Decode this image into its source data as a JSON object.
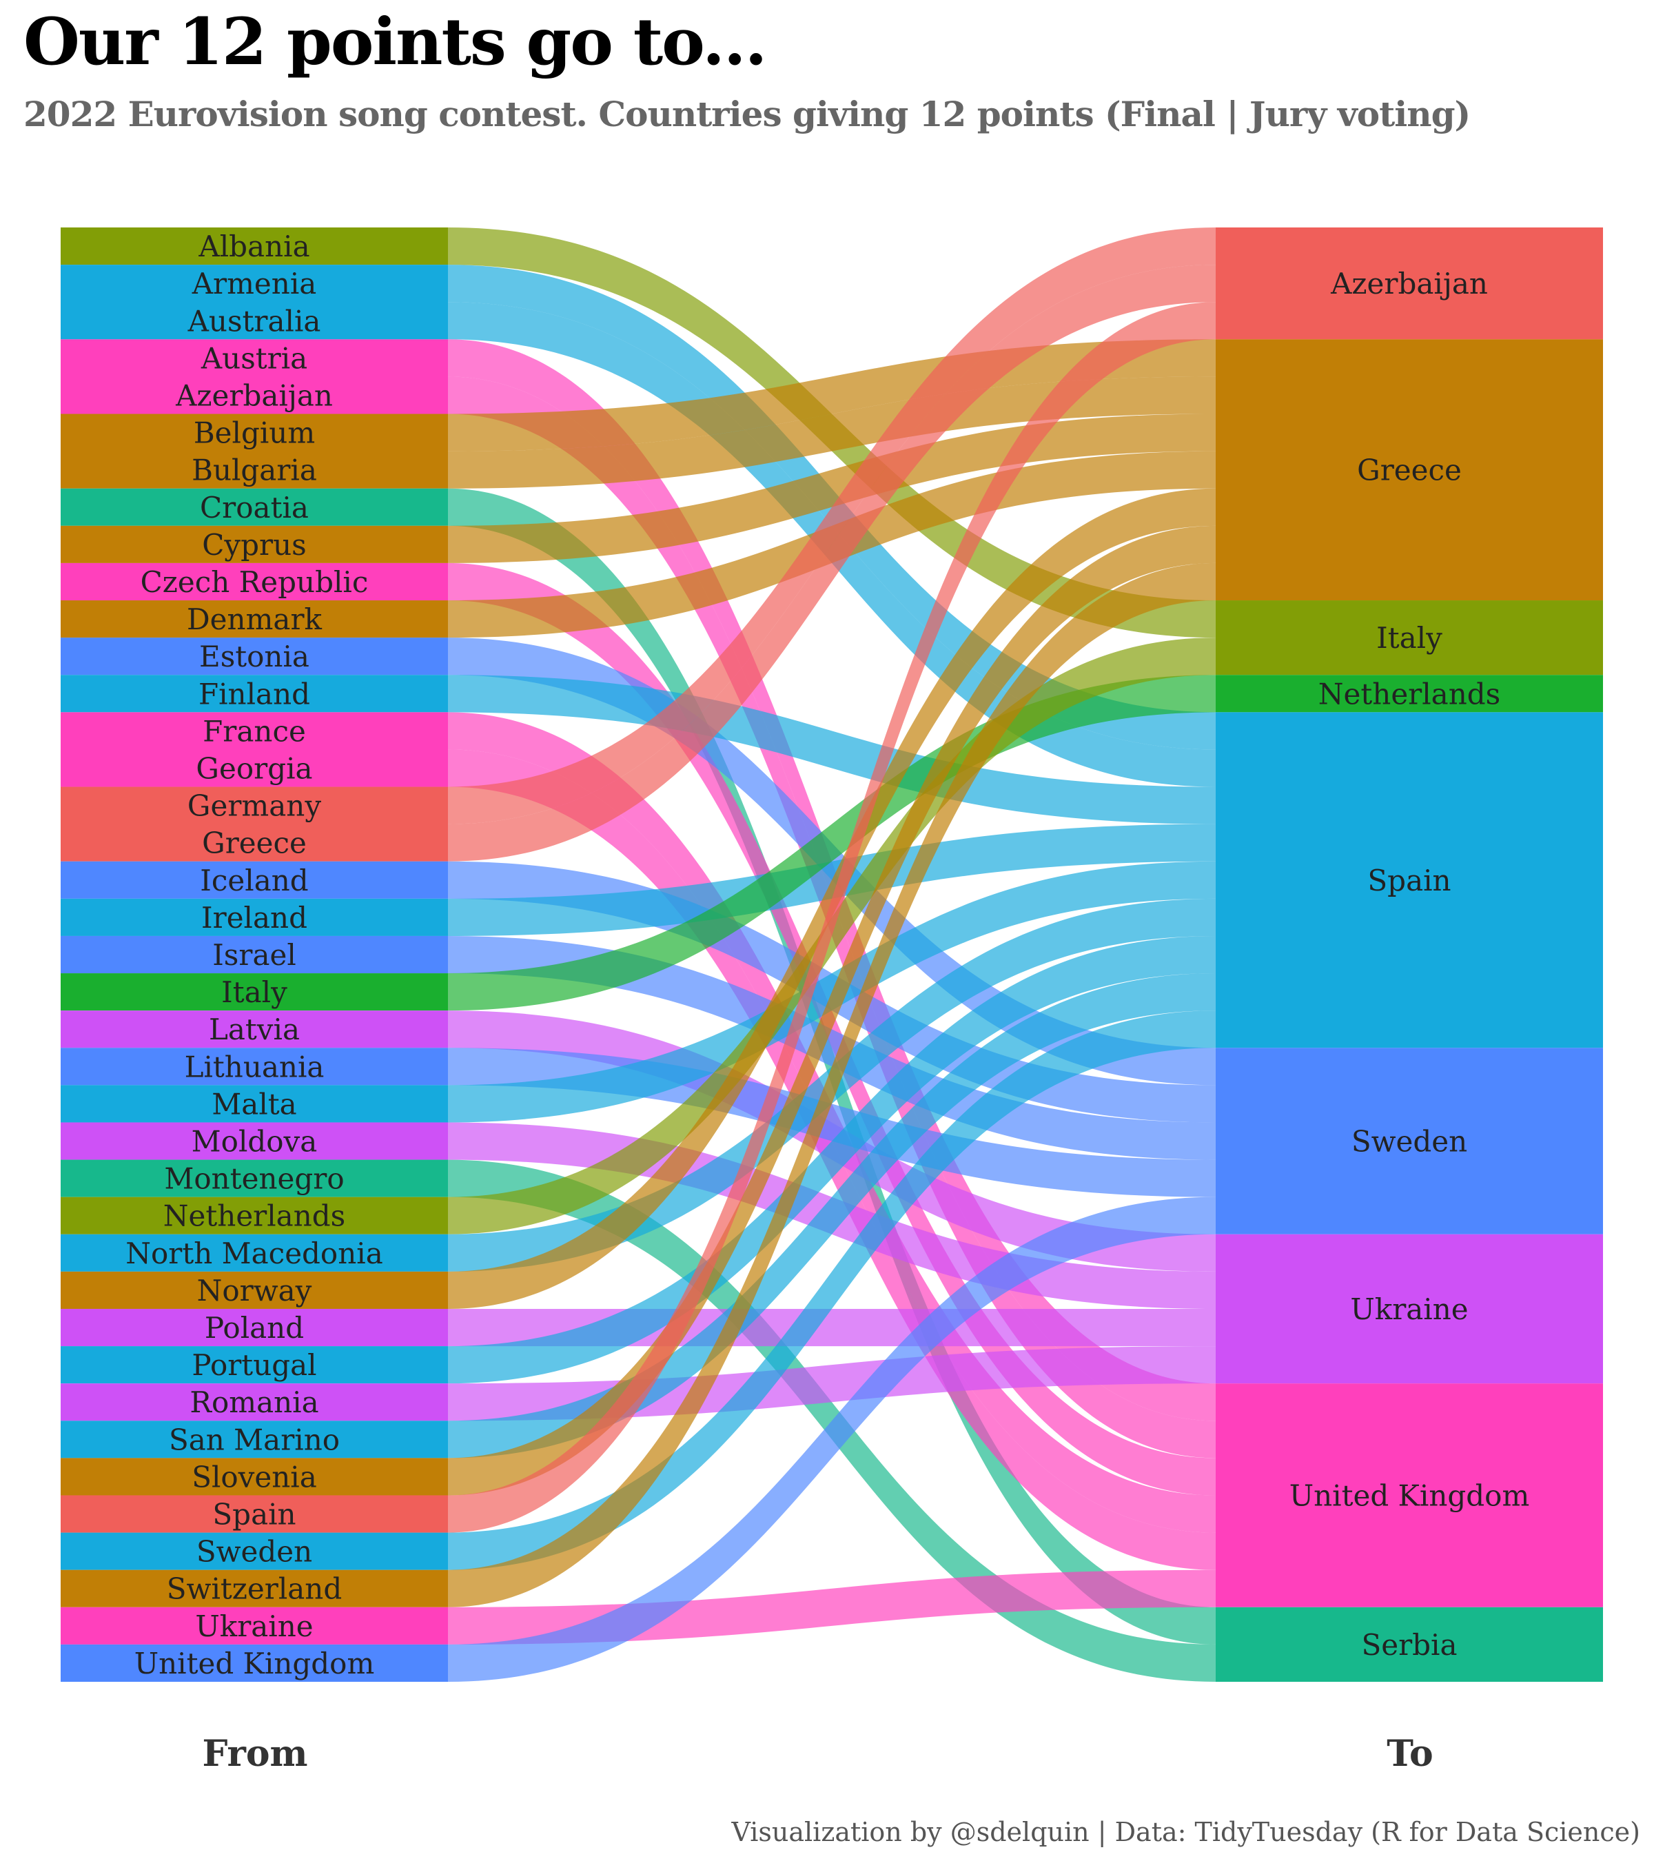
{
  "title": "Our 12 points go to...",
  "subtitle": "2022 Eurovision song contest. Countries giving 12 points (Final | Jury voting)",
  "caption": "Visualization by @sdelquin  |  Data: TidyTuesday (R for Data Science)",
  "chart_data": {
    "type": "alluvial",
    "axis_labels": [
      "From",
      "To"
    ],
    "flows": [
      {
        "from": "Albania",
        "to": "Italy",
        "value": 12
      },
      {
        "from": "Armenia",
        "to": "Spain",
        "value": 12
      },
      {
        "from": "Australia",
        "to": "Spain",
        "value": 12
      },
      {
        "from": "Austria",
        "to": "United Kingdom",
        "value": 12
      },
      {
        "from": "Azerbaijan",
        "to": "United Kingdom",
        "value": 12
      },
      {
        "from": "Belgium",
        "to": "Greece",
        "value": 12
      },
      {
        "from": "Bulgaria",
        "to": "Greece",
        "value": 12
      },
      {
        "from": "Croatia",
        "to": "Serbia",
        "value": 12
      },
      {
        "from": "Cyprus",
        "to": "Greece",
        "value": 12
      },
      {
        "from": "Czech Republic",
        "to": "United Kingdom",
        "value": 12
      },
      {
        "from": "Denmark",
        "to": "Greece",
        "value": 12
      },
      {
        "from": "Estonia",
        "to": "Sweden",
        "value": 12
      },
      {
        "from": "Finland",
        "to": "Spain",
        "value": 12
      },
      {
        "from": "France",
        "to": "United Kingdom",
        "value": 12
      },
      {
        "from": "Georgia",
        "to": "United Kingdom",
        "value": 12
      },
      {
        "from": "Germany",
        "to": "Azerbaijan",
        "value": 12
      },
      {
        "from": "Greece",
        "to": "Azerbaijan",
        "value": 12
      },
      {
        "from": "Iceland",
        "to": "Sweden",
        "value": 12
      },
      {
        "from": "Ireland",
        "to": "Spain",
        "value": 12
      },
      {
        "from": "Israel",
        "to": "Sweden",
        "value": 12
      },
      {
        "from": "Italy",
        "to": "Netherlands",
        "value": 12
      },
      {
        "from": "Latvia",
        "to": "Ukraine",
        "value": 12
      },
      {
        "from": "Lithuania",
        "to": "Sweden",
        "value": 12
      },
      {
        "from": "Malta",
        "to": "Spain",
        "value": 12
      },
      {
        "from": "Moldova",
        "to": "Ukraine",
        "value": 12
      },
      {
        "from": "Montenegro",
        "to": "Serbia",
        "value": 12
      },
      {
        "from": "Netherlands",
        "to": "Italy",
        "value": 12
      },
      {
        "from": "North Macedonia",
        "to": "Spain",
        "value": 12
      },
      {
        "from": "Norway",
        "to": "Greece",
        "value": 12
      },
      {
        "from": "Poland",
        "to": "Ukraine",
        "value": 12
      },
      {
        "from": "Portugal",
        "to": "Spain",
        "value": 12
      },
      {
        "from": "Romania",
        "to": "Ukraine",
        "value": 12
      },
      {
        "from": "San Marino",
        "to": "Spain",
        "value": 12
      },
      {
        "from": "Slovenia",
        "to": "Greece",
        "value": 12
      },
      {
        "from": "Spain",
        "to": "Azerbaijan",
        "value": 12
      },
      {
        "from": "Sweden",
        "to": "Spain",
        "value": 12
      },
      {
        "from": "Switzerland",
        "to": "Greece",
        "value": 12
      },
      {
        "from": "Ukraine",
        "to": "United Kingdom",
        "value": 12
      },
      {
        "from": "United Kingdom",
        "to": "Sweden",
        "value": 12
      }
    ],
    "to_order": [
      "Azerbaijan",
      "Greece",
      "Italy",
      "Netherlands",
      "Spain",
      "Sweden",
      "Ukraine",
      "United Kingdom",
      "Serbia"
    ],
    "node_colors": {
      "Azerbaijan": "#F05F5A",
      "Greece": "#C17F06",
      "Italy": "#829E06",
      "Netherlands": "#1AAF2F",
      "Spain": "#16AADD",
      "Sweden": "#4F87FF",
      "Ukraine": "#CE51F6",
      "United Kingdom": "#FF40BC",
      "Serbia": "#17B88C"
    }
  }
}
